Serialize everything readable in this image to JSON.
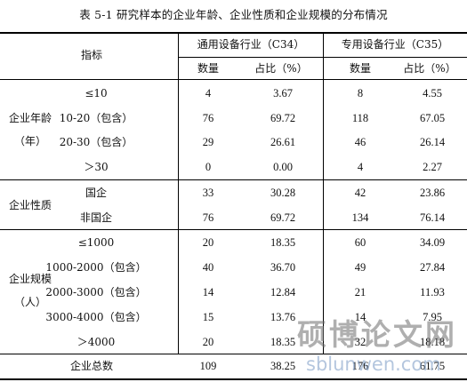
{
  "caption": "表 5-1  研究样本的企业年龄、企业性质和企业规模的分布情况",
  "header": {
    "indicator": "指标",
    "group_c34": "通用设备行业（C34）",
    "group_c35": "专用设备行业（C35）",
    "count": "数量",
    "ratio": "占比（%）"
  },
  "sections": {
    "age": "企业年龄（年）",
    "nature": "企业性质",
    "scale": "企业规模（人）"
  },
  "rows": [
    {
      "label": "≤10",
      "c34_count": "4",
      "c34_ratio": "3.67",
      "c35_count": "8",
      "c35_ratio": "4.55"
    },
    {
      "label": "10-20（包含）",
      "c34_count": "76",
      "c34_ratio": "69.72",
      "c35_count": "118",
      "c35_ratio": "67.05"
    },
    {
      "label": "20-30（包含）",
      "c34_count": "29",
      "c34_ratio": "26.61",
      "c35_count": "46",
      "c35_ratio": "26.14"
    },
    {
      "label": "＞30",
      "c34_count": "0",
      "c34_ratio": "0.00",
      "c35_count": "4",
      "c35_ratio": "2.27"
    },
    {
      "label": "国企",
      "c34_count": "33",
      "c34_ratio": "30.28",
      "c35_count": "42",
      "c35_ratio": "23.86"
    },
    {
      "label": "非国企",
      "c34_count": "76",
      "c34_ratio": "69.72",
      "c35_count": "134",
      "c35_ratio": "76.14"
    },
    {
      "label": "≤1000",
      "c34_count": "20",
      "c34_ratio": "18.35",
      "c35_count": "60",
      "c35_ratio": "34.09"
    },
    {
      "label": "1000-2000（包含）",
      "c34_count": "40",
      "c34_ratio": "36.70",
      "c35_count": "49",
      "c35_ratio": "27.84"
    },
    {
      "label": "2000-3000（包含）",
      "c34_count": "14",
      "c34_ratio": "12.84",
      "c35_count": "21",
      "c35_ratio": "11.93"
    },
    {
      "label": "3000-4000（包含）",
      "c34_count": "15",
      "c34_ratio": "13.76",
      "c35_count": "14",
      "c35_ratio": "7.95"
    },
    {
      "label": "＞4000",
      "c34_count": "20",
      "c34_ratio": "18.35",
      "c35_count": "32",
      "c35_ratio": "18.18"
    }
  ],
  "total": {
    "label": "企业总数",
    "c34_count": "109",
    "c34_ratio": "38.25",
    "c35_count": "176",
    "c35_ratio": "61.75"
  },
  "watermark": {
    "cn": "硕博论文网",
    "en": "sblunwen.com"
  }
}
